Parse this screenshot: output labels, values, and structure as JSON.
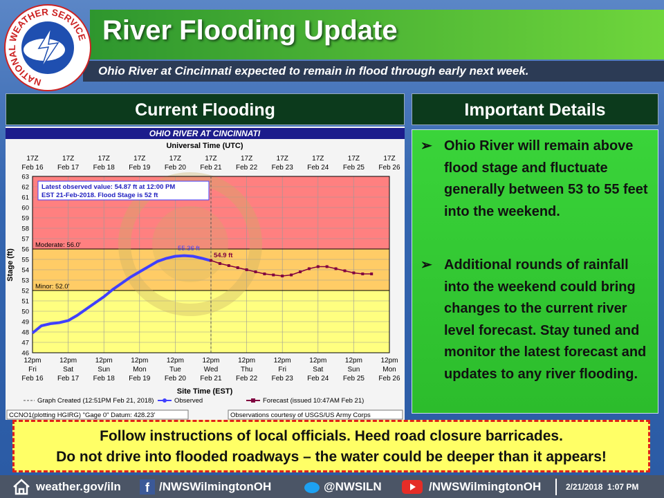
{
  "logo": {
    "text": "NATIONAL WEATHER SERVICE"
  },
  "header": {
    "title": "River Flooding Update",
    "subtitle": "Ohio River at Cincinnati expected to remain in flood through early next week."
  },
  "left_panel": {
    "title": "Current Flooding"
  },
  "right_panel": {
    "title": "Important Details",
    "bullets": [
      "Ohio River will remain above flood stage and fluctuate generally between 53 to 55 feet into the weekend.",
      "Additional rounds of rainfall into the weekend could bring changes to the current river level forecast. Stay tuned and monitor the latest forecast and updates to any river flooding."
    ]
  },
  "warning": {
    "lines": [
      "Follow instructions of local officials.  Heed road closure barricades.",
      "Do not drive into flooded roadways – the water could be deeper than it appears!"
    ]
  },
  "footer": {
    "website": "weather.gov/iln",
    "facebook": "/NWSWilmingtonOH",
    "twitter": "@NWSILN",
    "youtube": "/NWSWilmingtonOH",
    "timestamp": "2/21/2018  1:07 PM"
  },
  "chart_data": {
    "type": "line",
    "title": "OHIO RIVER AT CINCINNATI",
    "x_top_label": "Universal Time (UTC)",
    "x_label": "Site Time (EST)",
    "y_label": "Stage (ft)",
    "xlim": [
      "2018-02-16T12:00",
      "2018-02-26T12:00"
    ],
    "xticks": [
      {
        "value": "2018-02-16T12:00",
        "label": [
          "12pm",
          "Fri",
          "Feb 16"
        ],
        "utc_label": [
          "17Z",
          "Feb 16"
        ]
      },
      {
        "value": "2018-02-17T12:00",
        "label": [
          "12pm",
          "Sat",
          "Feb 17"
        ],
        "utc_label": [
          "17Z",
          "Feb 17"
        ]
      },
      {
        "value": "2018-02-18T12:00",
        "label": [
          "12pm",
          "Sun",
          "Feb 18"
        ],
        "utc_label": [
          "17Z",
          "Feb 18"
        ]
      },
      {
        "value": "2018-02-19T12:00",
        "label": [
          "12pm",
          "Mon",
          "Feb 19"
        ],
        "utc_label": [
          "17Z",
          "Feb 19"
        ]
      },
      {
        "value": "2018-02-20T12:00",
        "label": [
          "12pm",
          "Tue",
          "Feb 20"
        ],
        "utc_label": [
          "17Z",
          "Feb 20"
        ]
      },
      {
        "value": "2018-02-21T12:00",
        "label": [
          "12pm",
          "Wed",
          "Feb 21"
        ],
        "utc_label": [
          "17Z",
          "Feb 21"
        ]
      },
      {
        "value": "2018-02-22T12:00",
        "label": [
          "12pm",
          "Thu",
          "Feb 22"
        ],
        "utc_label": [
          "17Z",
          "Feb 22"
        ]
      },
      {
        "value": "2018-02-23T12:00",
        "label": [
          "12pm",
          "Fri",
          "Feb 23"
        ],
        "utc_label": [
          "17Z",
          "Feb 23"
        ]
      },
      {
        "value": "2018-02-24T12:00",
        "label": [
          "12pm",
          "Sat",
          "Feb 24"
        ],
        "utc_label": [
          "17Z",
          "Feb 24"
        ]
      },
      {
        "value": "2018-02-25T12:00",
        "label": [
          "12pm",
          "Sun",
          "Feb 25"
        ],
        "utc_label": [
          "17Z",
          "Feb 25"
        ]
      },
      {
        "value": "2018-02-26T12:00",
        "label": [
          "12pm",
          "Mon",
          "Feb 26"
        ],
        "utc_label": [
          "17Z",
          "Feb 26"
        ]
      }
    ],
    "ylim": [
      46,
      63
    ],
    "yticks": [
      46,
      47,
      48,
      49,
      50,
      51,
      52,
      53,
      54,
      55,
      56,
      57,
      58,
      59,
      60,
      61,
      62,
      63
    ],
    "grid": true,
    "below_flood_color": "#ffff80",
    "thresholds": [
      {
        "label": "Minor: 52.0'",
        "value": 52,
        "color": "#ffcc66"
      },
      {
        "label": "Moderate: 56.0'",
        "value": 56,
        "color": "#ff8080"
      }
    ],
    "info_box": [
      "Latest observed value: 54.87 ft at 12:00 PM",
      "EST 21-Feb-2018. Flood Stage is 52 ft"
    ],
    "annotations": [
      "55.36 ft",
      "54.9 ft"
    ],
    "created": "Graph Created (12:51PM Feb 21, 2018)",
    "series": [
      {
        "name": "Observed",
        "color": "#4040ff",
        "x": [
          "2018-02-16T12:00",
          "2018-02-16T18:00",
          "2018-02-17T00:00",
          "2018-02-17T06:00",
          "2018-02-17T12:00",
          "2018-02-17T18:00",
          "2018-02-18T00:00",
          "2018-02-18T06:00",
          "2018-02-18T12:00",
          "2018-02-18T18:00",
          "2018-02-19T00:00",
          "2018-02-19T06:00",
          "2018-02-19T12:00",
          "2018-02-19T18:00",
          "2018-02-20T00:00",
          "2018-02-20T06:00",
          "2018-02-20T12:00",
          "2018-02-20T18:00",
          "2018-02-21T00:00",
          "2018-02-21T06:00",
          "2018-02-21T12:00"
        ],
        "values": [
          47.9,
          48.6,
          48.8,
          48.9,
          49.1,
          49.6,
          50.2,
          50.8,
          51.4,
          52.1,
          52.7,
          53.3,
          53.8,
          54.3,
          54.8,
          55.1,
          55.3,
          55.36,
          55.3,
          55.1,
          54.87
        ]
      },
      {
        "name": "Forecast (issued 10:47AM Feb 21)",
        "color": "#800040",
        "x": [
          "2018-02-21T12:00",
          "2018-02-21T18:00",
          "2018-02-22T00:00",
          "2018-02-22T06:00",
          "2018-02-22T12:00",
          "2018-02-22T18:00",
          "2018-02-23T00:00",
          "2018-02-23T06:00",
          "2018-02-23T12:00",
          "2018-02-23T18:00",
          "2018-02-24T00:00",
          "2018-02-24T06:00",
          "2018-02-24T12:00",
          "2018-02-24T18:00",
          "2018-02-25T00:00",
          "2018-02-25T06:00",
          "2018-02-25T12:00",
          "2018-02-25T18:00",
          "2018-02-26T00:00"
        ],
        "values": [
          54.9,
          54.6,
          54.4,
          54.2,
          54.0,
          53.8,
          53.6,
          53.5,
          53.4,
          53.5,
          53.8,
          54.1,
          54.3,
          54.3,
          54.1,
          53.9,
          53.7,
          53.6,
          53.6
        ]
      }
    ],
    "footnotes": [
      "CCNO1(plotting HGIRG) \"Gage 0\" Datum: 428.23'",
      "Observations courtesy of USGS/US Army Corps"
    ]
  }
}
